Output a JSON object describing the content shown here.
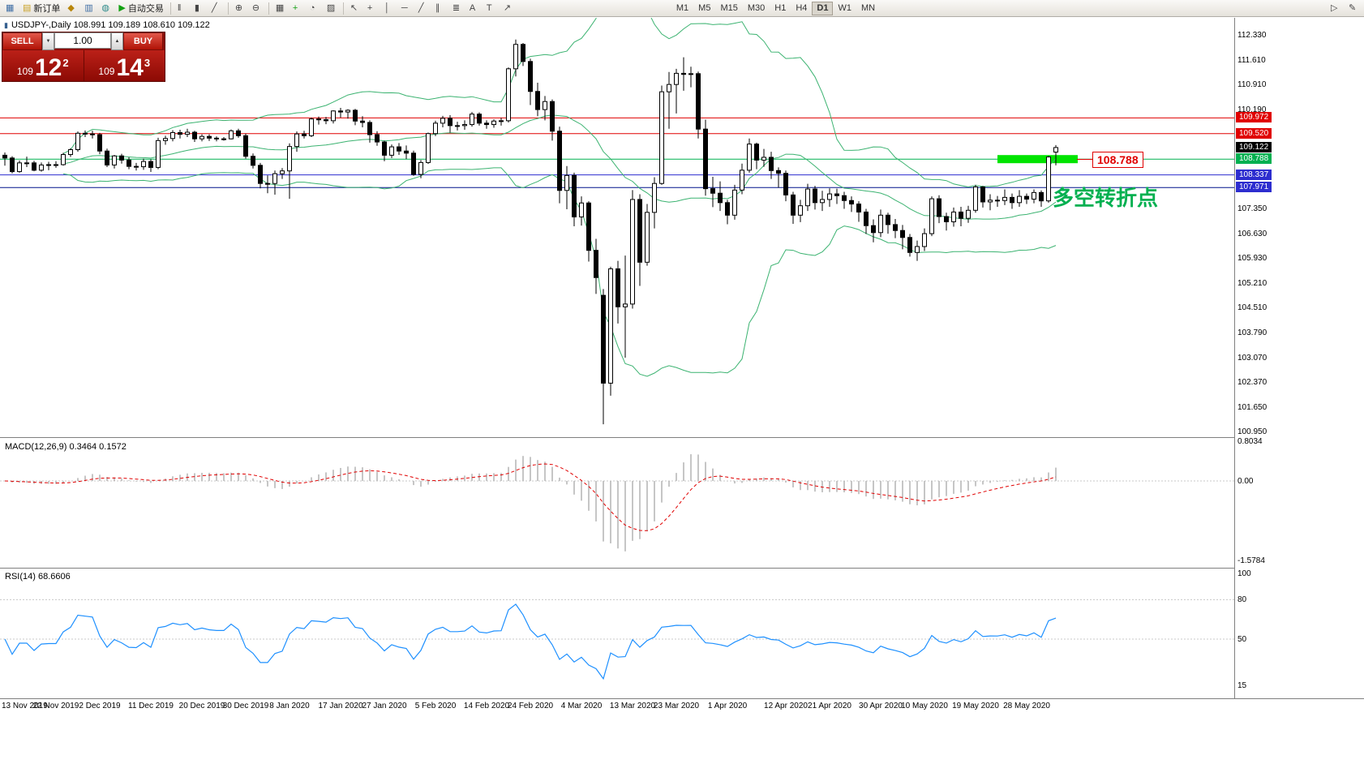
{
  "window": {
    "header_icon_glyph": "▮"
  },
  "toolbar": {
    "items": [
      {
        "name": "new-chart-button",
        "glyph": "▦",
        "color": "#3f6ea5"
      },
      {
        "name": "new-order-button",
        "glyph": "▤",
        "color": "#c9a227",
        "label": "新订单"
      },
      {
        "name": "profiles-button",
        "glyph": "◆",
        "color": "#b8860b"
      },
      {
        "name": "market-watch-button",
        "glyph": "▥",
        "color": "#3f6ea5"
      },
      {
        "name": "data-window-button",
        "glyph": "◍",
        "color": "#2e8b8b"
      },
      {
        "name": "autotrading-button",
        "glyph": "▶",
        "color": "#13a113",
        "label": "自动交易"
      },
      {
        "sep": true
      },
      {
        "name": "bar-chart-button",
        "glyph": "‖",
        "color": "#444444"
      },
      {
        "name": "candlestick-chart-button",
        "glyph": "▮",
        "color": "#444444"
      },
      {
        "name": "line-chart-button",
        "glyph": "╱",
        "color": "#444444"
      },
      {
        "sep": true
      },
      {
        "name": "zoom-in-button",
        "glyph": "⊕",
        "color": "#444444"
      },
      {
        "name": "zoom-out-button",
        "glyph": "⊖",
        "color": "#444444"
      },
      {
        "sep": true
      },
      {
        "name": "tile-windows-button",
        "glyph": "▦",
        "color": "#444444"
      },
      {
        "name": "indicators-button",
        "glyph": "+",
        "color": "#13a113"
      },
      {
        "name": "periods-button",
        "glyph": "◔",
        "color": "#444444"
      },
      {
        "name": "templates-button",
        "glyph": "▨",
        "color": "#444444"
      },
      {
        "sep": true
      },
      {
        "name": "cursor-button",
        "glyph": "↖",
        "color": "#444444"
      },
      {
        "name": "crosshair-button",
        "glyph": "+",
        "color": "#444444"
      },
      {
        "name": "vertical-line-button",
        "glyph": "│",
        "color": "#444444"
      },
      {
        "name": "horizontal-line-button",
        "glyph": "─",
        "color": "#444444"
      },
      {
        "name": "trendline-button",
        "glyph": "╱",
        "color": "#444444"
      },
      {
        "name": "channel-button",
        "glyph": "∥",
        "color": "#444444"
      },
      {
        "name": "fibonacci-button",
        "glyph": "≣",
        "color": "#444444"
      },
      {
        "name": "text-button",
        "glyph": "A",
        "color": "#444444"
      },
      {
        "name": "label-button",
        "glyph": "T",
        "color": "#444444"
      },
      {
        "name": "arrows-button",
        "glyph": "↗",
        "color": "#444444"
      }
    ],
    "timeframes": [
      "M1",
      "M5",
      "M15",
      "M30",
      "H1",
      "H4",
      "D1",
      "W1",
      "MN"
    ],
    "active_timeframe": "D1",
    "right_items": [
      {
        "name": "chart-shift-button",
        "glyph": "▷",
        "color": "#444444"
      },
      {
        "name": "edit-button",
        "glyph": "✎",
        "color": "#444444"
      }
    ]
  },
  "trade_panel": {
    "sell_label": "SELL",
    "buy_label": "BUY",
    "volume": "1.00",
    "spin_down": "▼",
    "spin_up": "▲",
    "bid": {
      "small": "109",
      "big": "12",
      "sup": "2"
    },
    "ask": {
      "small": "109",
      "big": "14",
      "sup": "3"
    }
  },
  "chart_data": {
    "type": "candlestick",
    "symbol": "USDJPY",
    "timeframe": "Daily",
    "ohlc_title": "USDJPY-,Daily 108.991 109.189 108.610 109.122",
    "open": "108.991",
    "high": "109.189",
    "low": "108.610",
    "close": "109.122",
    "style": {
      "up_color": "#ffffff",
      "down_color": "#000000",
      "outline": "#000000"
    },
    "candles": [
      [
        108.9,
        108.98,
        108.6,
        108.82
      ],
      [
        108.82,
        108.87,
        108.38,
        108.43
      ],
      [
        108.43,
        108.75,
        108.4,
        108.68
      ],
      [
        108.68,
        108.86,
        108.56,
        108.68
      ],
      [
        108.68,
        108.74,
        108.44,
        108.47
      ],
      [
        108.47,
        108.69,
        108.43,
        108.62
      ],
      [
        108.62,
        108.71,
        108.47,
        108.63
      ],
      [
        108.63,
        108.73,
        108.54,
        108.63
      ],
      [
        108.63,
        108.97,
        108.6,
        108.92
      ],
      [
        108.92,
        109.1,
        108.85,
        109.06
      ],
      [
        109.06,
        109.58,
        109.0,
        109.53
      ],
      [
        109.53,
        109.61,
        109.42,
        109.51
      ],
      [
        109.51,
        109.6,
        109.38,
        109.49
      ],
      [
        109.49,
        109.54,
        108.93,
        109.02
      ],
      [
        109.02,
        109.09,
        108.56,
        108.62
      ],
      [
        108.62,
        108.91,
        108.52,
        108.88
      ],
      [
        108.88,
        108.94,
        108.66,
        108.76
      ],
      [
        108.76,
        108.84,
        108.5,
        108.58
      ],
      [
        108.58,
        108.68,
        108.46,
        108.57
      ],
      [
        108.57,
        108.8,
        108.48,
        108.72
      ],
      [
        108.72,
        108.78,
        108.42,
        108.55
      ],
      [
        108.55,
        109.4,
        108.5,
        109.32
      ],
      [
        109.32,
        109.46,
        109.2,
        109.38
      ],
      [
        109.38,
        109.62,
        109.3,
        109.55
      ],
      [
        109.55,
        109.63,
        109.38,
        109.5
      ],
      [
        109.5,
        109.66,
        109.42,
        109.56
      ],
      [
        109.56,
        109.6,
        109.28,
        109.37
      ],
      [
        109.37,
        109.5,
        109.3,
        109.44
      ],
      [
        109.44,
        109.5,
        109.31,
        109.39
      ],
      [
        109.39,
        109.44,
        109.3,
        109.37
      ],
      [
        109.37,
        109.42,
        109.32,
        109.37
      ],
      [
        109.37,
        109.64,
        109.35,
        109.6
      ],
      [
        109.6,
        109.66,
        109.4,
        109.46
      ],
      [
        109.46,
        109.52,
        108.8,
        108.87
      ],
      [
        108.87,
        108.95,
        108.52,
        108.61
      ],
      [
        108.61,
        108.68,
        107.95,
        108.09
      ],
      [
        108.09,
        108.32,
        107.81,
        108.09
      ],
      [
        108.09,
        108.46,
        107.77,
        108.37
      ],
      [
        108.37,
        108.53,
        108.22,
        108.45
      ],
      [
        108.45,
        109.24,
        107.65,
        109.15
      ],
      [
        109.15,
        109.58,
        109.0,
        109.51
      ],
      [
        109.51,
        109.6,
        109.38,
        109.46
      ],
      [
        109.46,
        109.98,
        109.42,
        109.94
      ],
      [
        109.94,
        110.01,
        109.78,
        109.92
      ],
      [
        109.92,
        110.0,
        109.79,
        109.89
      ],
      [
        109.89,
        110.19,
        109.81,
        110.17
      ],
      [
        110.17,
        110.26,
        109.98,
        110.14
      ],
      [
        110.14,
        110.22,
        109.95,
        110.19
      ],
      [
        110.19,
        110.23,
        109.76,
        109.88
      ],
      [
        109.88,
        110.02,
        109.7,
        109.84
      ],
      [
        109.84,
        109.9,
        109.26,
        109.49
      ],
      [
        109.49,
        109.59,
        109.17,
        109.28
      ],
      [
        109.28,
        109.32,
        108.73,
        108.9
      ],
      [
        108.9,
        109.21,
        108.82,
        109.14
      ],
      [
        109.14,
        109.25,
        108.91,
        109.02
      ],
      [
        109.02,
        109.18,
        108.79,
        108.96
      ],
      [
        108.96,
        109.03,
        108.31,
        108.35
      ],
      [
        108.35,
        108.76,
        108.24,
        108.69
      ],
      [
        108.69,
        109.55,
        108.65,
        109.52
      ],
      [
        109.52,
        109.89,
        109.45,
        109.82
      ],
      [
        109.82,
        110.03,
        109.7,
        109.96
      ],
      [
        109.96,
        110.05,
        109.55,
        109.75
      ],
      [
        109.75,
        109.86,
        109.61,
        109.75
      ],
      [
        109.75,
        109.9,
        109.63,
        109.78
      ],
      [
        109.78,
        110.14,
        109.72,
        110.08
      ],
      [
        110.08,
        110.13,
        109.75,
        109.82
      ],
      [
        109.82,
        109.9,
        109.66,
        109.78
      ],
      [
        109.78,
        109.93,
        109.69,
        109.88
      ],
      [
        109.88,
        109.97,
        109.75,
        109.89
      ],
      [
        109.89,
        111.42,
        109.84,
        111.38
      ],
      [
        111.38,
        112.22,
        111.16,
        112.08
      ],
      [
        112.08,
        112.12,
        111.46,
        111.59
      ],
      [
        111.59,
        111.67,
        110.34,
        110.73
      ],
      [
        110.73,
        110.98,
        110.02,
        110.21
      ],
      [
        110.21,
        110.6,
        109.9,
        110.44
      ],
      [
        110.44,
        110.5,
        109.32,
        109.59
      ],
      [
        109.59,
        109.72,
        107.52,
        107.89
      ],
      [
        107.89,
        108.59,
        107.35,
        108.32
      ],
      [
        108.32,
        108.4,
        106.86,
        107.13
      ],
      [
        107.13,
        107.72,
        106.88,
        107.53
      ],
      [
        107.53,
        107.58,
        105.85,
        106.17
      ],
      [
        106.17,
        106.5,
        104.92,
        105.39
      ],
      [
        104.88,
        105.06,
        101.18,
        102.36
      ],
      [
        102.36,
        105.7,
        102.0,
        105.64
      ],
      [
        105.64,
        105.87,
        104.07,
        104.55
      ],
      [
        104.55,
        106.02,
        103.09,
        104.63
      ],
      [
        104.63,
        107.9,
        104.5,
        107.63
      ],
      [
        107.63,
        107.78,
        105.15,
        105.83
      ],
      [
        105.83,
        107.5,
        105.73,
        107.26
      ],
      [
        107.26,
        108.27,
        106.8,
        108.09
      ],
      [
        108.09,
        110.9,
        108.05,
        110.72
      ],
      [
        110.72,
        111.29,
        109.66,
        110.93
      ],
      [
        110.93,
        111.38,
        110.1,
        111.25
      ],
      [
        111.25,
        111.71,
        110.75,
        111.22
      ],
      [
        111.22,
        111.44,
        110.85,
        111.24
      ],
      [
        111.24,
        111.3,
        109.38,
        109.65
      ],
      [
        109.65,
        109.92,
        107.74,
        107.94
      ],
      [
        107.94,
        108.28,
        107.41,
        107.81
      ],
      [
        107.81,
        108.15,
        107.3,
        107.54
      ],
      [
        107.54,
        107.62,
        106.92,
        107.18
      ],
      [
        107.18,
        108.05,
        107.05,
        107.9
      ],
      [
        107.9,
        108.66,
        107.78,
        108.47
      ],
      [
        108.47,
        109.38,
        108.4,
        109.22
      ],
      [
        109.22,
        109.26,
        108.5,
        108.76
      ],
      [
        108.76,
        109.08,
        108.57,
        108.84
      ],
      [
        108.84,
        109.0,
        108.22,
        108.46
      ],
      [
        108.46,
        108.55,
        107.97,
        108.38
      ],
      [
        108.38,
        108.46,
        107.58,
        107.76
      ],
      [
        107.76,
        107.85,
        106.93,
        107.18
      ],
      [
        107.18,
        107.62,
        106.98,
        107.45
      ],
      [
        107.45,
        108.08,
        107.3,
        107.93
      ],
      [
        107.93,
        108.02,
        107.34,
        107.54
      ],
      [
        107.54,
        107.88,
        107.3,
        107.63
      ],
      [
        107.63,
        107.95,
        107.42,
        107.79
      ],
      [
        107.79,
        107.94,
        107.5,
        107.74
      ],
      [
        107.74,
        107.85,
        107.36,
        107.6
      ],
      [
        107.6,
        107.72,
        107.27,
        107.5
      ],
      [
        107.5,
        107.58,
        106.99,
        107.27
      ],
      [
        107.27,
        107.36,
        106.64,
        106.88
      ],
      [
        106.88,
        107.06,
        106.4,
        106.68
      ],
      [
        106.68,
        107.34,
        106.55,
        107.18
      ],
      [
        107.18,
        107.25,
        106.65,
        106.91
      ],
      [
        106.91,
        107.07,
        106.52,
        106.74
      ],
      [
        106.74,
        106.9,
        106.2,
        106.54
      ],
      [
        106.54,
        106.64,
        105.99,
        106.11
      ],
      [
        106.11,
        106.45,
        105.87,
        106.28
      ],
      [
        106.28,
        106.8,
        106.15,
        106.65
      ],
      [
        106.65,
        107.72,
        106.58,
        107.65
      ],
      [
        107.65,
        107.75,
        106.95,
        107.14
      ],
      [
        107.14,
        107.25,
        106.74,
        106.99
      ],
      [
        106.99,
        107.4,
        106.85,
        107.27
      ],
      [
        107.27,
        107.42,
        106.86,
        107.09
      ],
      [
        107.09,
        107.45,
        106.96,
        107.32
      ],
      [
        107.32,
        108.05,
        107.25,
        107.99
      ],
      [
        107.99,
        108.02,
        107.4,
        107.56
      ],
      [
        107.56,
        107.78,
        107.32,
        107.61
      ],
      [
        107.61,
        107.73,
        107.42,
        107.6
      ],
      [
        107.6,
        107.92,
        107.47,
        107.69
      ],
      [
        107.69,
        107.8,
        107.36,
        107.54
      ],
      [
        107.54,
        107.9,
        107.42,
        107.72
      ],
      [
        107.72,
        107.8,
        107.5,
        107.64
      ],
      [
        107.64,
        107.92,
        107.52,
        107.83
      ],
      [
        107.83,
        107.89,
        107.42,
        107.59
      ],
      [
        107.59,
        108.88,
        107.54,
        108.85
      ],
      [
        108.99,
        109.19,
        108.61,
        109.12
      ]
    ],
    "date_labels": [
      {
        "i": 0,
        "text": "13 Nov 2019"
      },
      {
        "i": 7,
        "text": "22 Nov 2019"
      },
      {
        "i": 13,
        "text": "2 Dec 2019"
      },
      {
        "i": 20,
        "text": "11 Dec 2019"
      },
      {
        "i": 27,
        "text": "20 Dec 2019"
      },
      {
        "i": 33,
        "text": "30 Dec 2019"
      },
      {
        "i": 39,
        "text": "8 Jan 2020"
      },
      {
        "i": 46,
        "text": "17 Jan 2020"
      },
      {
        "i": 52,
        "text": "27 Jan 2020"
      },
      {
        "i": 59,
        "text": "5 Feb 2020"
      },
      {
        "i": 66,
        "text": "14 Feb 2020"
      },
      {
        "i": 72,
        "text": "24 Feb 2020"
      },
      {
        "i": 79,
        "text": "4 Mar 2020"
      },
      {
        "i": 86,
        "text": "13 Mar 2020"
      },
      {
        "i": 92,
        "text": "23 Mar 2020"
      },
      {
        "i": 99,
        "text": "1 Apr 2020"
      },
      {
        "i": 107,
        "text": "12 Apr 2020"
      },
      {
        "i": 113,
        "text": "21 Apr 2020"
      },
      {
        "i": 120,
        "text": "30 Apr 2020"
      },
      {
        "i": 126,
        "text": "10 May 2020"
      },
      {
        "i": 133,
        "text": "19 May 2020"
      },
      {
        "i": 140,
        "text": "28 May 2020"
      }
    ],
    "price_axis": [
      {
        "text": "112.330",
        "type": "grid"
      },
      {
        "text": "111.610",
        "type": "grid"
      },
      {
        "text": "110.910",
        "type": "grid"
      },
      {
        "text": "110.190",
        "type": "grid"
      },
      {
        "text": "109.972",
        "type": "resistance"
      },
      {
        "text": "109.520",
        "type": "resistance"
      },
      {
        "text": "109.122",
        "type": "current"
      },
      {
        "text": "108.788",
        "type": "pivot"
      },
      {
        "text": "108.337",
        "type": "support"
      },
      {
        "text": "107.971",
        "type": "support"
      },
      {
        "text": "107.350",
        "type": "grid"
      },
      {
        "text": "106.630",
        "type": "grid"
      },
      {
        "text": "105.930",
        "type": "grid"
      },
      {
        "text": "105.210",
        "type": "grid"
      },
      {
        "text": "104.510",
        "type": "grid"
      },
      {
        "text": "103.790",
        "type": "grid"
      },
      {
        "text": "103.070",
        "type": "grid"
      },
      {
        "text": "102.370",
        "type": "grid"
      },
      {
        "text": "101.650",
        "type": "grid"
      },
      {
        "text": "100.950",
        "type": "grid"
      }
    ],
    "hlines": [
      {
        "price": 109.972,
        "color": "#e00000"
      },
      {
        "price": 109.52,
        "color": "#e00000"
      },
      {
        "price": 108.788,
        "color": "#00b050"
      },
      {
        "price": 108.337,
        "color": "#2d2dcf"
      },
      {
        "price": 107.971,
        "color": "#00128b"
      }
    ],
    "annotations": {
      "pivot_box": {
        "price": 108.788,
        "label": "108.788",
        "color": "#00e400",
        "label_color": "#e00000"
      },
      "note": {
        "text": "多空转折点",
        "color": "#00b050"
      }
    },
    "indicators": {
      "bollinger": {
        "period": 20,
        "deviation": 2,
        "color": "#3cb371"
      },
      "macd": {
        "title": "MACD(12,26,9) 0.3464 0.1572",
        "hist_color": "#b8b8b8",
        "signal_color": "#e00000",
        "axis": [
          {
            "v": 0.8034,
            "text": "0.8034"
          },
          {
            "v": 0,
            "text": "0.00"
          },
          {
            "v": -1.5784,
            "text": "-1.5784"
          }
        ]
      },
      "rsi": {
        "title": "RSI(14) 68.6606",
        "color": "#1e90ff",
        "levels": [
          80,
          50
        ],
        "axis": [
          {
            "v": 100,
            "text": "100"
          },
          {
            "v": 80,
            "text": "80"
          },
          {
            "v": 50,
            "text": "50"
          },
          {
            "v": 15,
            "text": "15"
          }
        ]
      }
    }
  }
}
